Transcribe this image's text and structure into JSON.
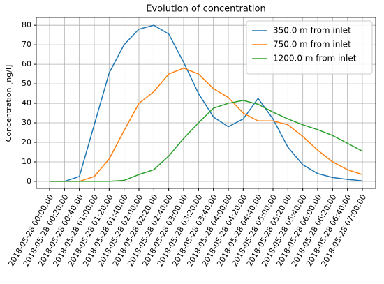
{
  "chart_data": {
    "type": "line",
    "title": "Evolution of concentration",
    "y_label": "Concentration [ng/l]",
    "categories": [
      "2018-05-28 00:00:00",
      "2018-05-28 00:20:00",
      "2018-05-28 00:40:00",
      "2018-05-28 01:00:00",
      "2018-05-28 01:20:00",
      "2018-05-28 01:40:00",
      "2018-05-28 02:00:00",
      "2018-05-28 02:20:00",
      "2018-05-28 02:40:00",
      "2018-05-28 03:00:00",
      "2018-05-28 03:20:00",
      "2018-05-28 03:40:00",
      "2018-05-28 04:00:00",
      "2018-05-28 04:20:00",
      "2018-05-28 04:40:00",
      "2018-05-28 05:00:00",
      "2018-05-28 05:20:00",
      "2018-05-28 05:40:00",
      "2018-05-28 06:00:00",
      "2018-05-28 06:20:00",
      "2018-05-28 06:40:00",
      "2018-05-28 07:00:00"
    ],
    "series": [
      {
        "name": "350.0 m from inlet",
        "color": "#1f77b4",
        "values": [
          0,
          0,
          2.5,
          29,
          55.5,
          70,
          78,
          80,
          75.5,
          61,
          45,
          33,
          28,
          32,
          42.5,
          32,
          17.5,
          8.5,
          4,
          2,
          1,
          0.3
        ]
      },
      {
        "name": "750.0 m from inlet",
        "color": "#ff7f0e",
        "values": [
          0,
          0,
          0,
          2.5,
          11.5,
          26,
          40,
          46,
          55,
          58,
          55,
          47.5,
          43,
          35,
          31,
          31,
          29,
          23,
          16,
          10,
          6,
          3.5
        ]
      },
      {
        "name": "1200.0 m from inlet",
        "color": "#2ca02c",
        "values": [
          0,
          0,
          0,
          0,
          0,
          0.5,
          3.5,
          6,
          13,
          22,
          30,
          37.5,
          40,
          41.5,
          39.5,
          35.5,
          32,
          29,
          26.5,
          23.5,
          19.5,
          15.5
        ]
      }
    ],
    "ylim": [
      -3.6,
      84
    ],
    "yticks": [
      0,
      10,
      20,
      30,
      40,
      50,
      60,
      70,
      80
    ],
    "grid": true,
    "legend": "upper right"
  }
}
